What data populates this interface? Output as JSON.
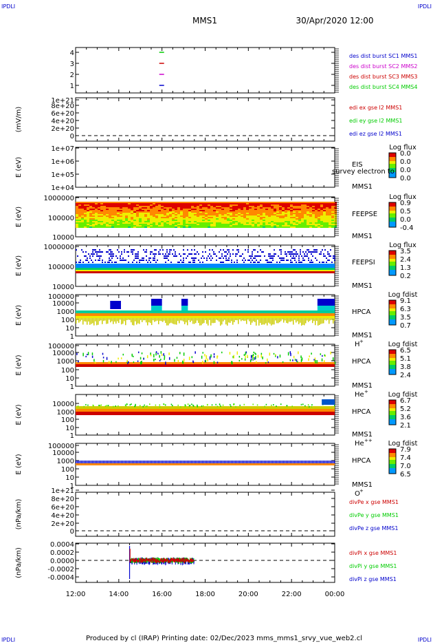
{
  "header": {
    "left_tag": "IPDLI",
    "right_tag": "IPDLI",
    "spacecraft": "MMS1",
    "datetime": "30/Apr/2020 12:00"
  },
  "footer": {
    "left_tag": "IPDLI",
    "right_tag": "IPDLI",
    "credit": "Produced by cl (IRAP)   Printing date: 02/Dec/2023   mms_mms1_srvy_vue_web2.cl"
  },
  "colors": {
    "red": "#cc0000",
    "green": "#00cc00",
    "blue": "#0000cc",
    "magenta": "#cc00cc",
    "tag_blue": "#0000cc"
  },
  "time_axis": {
    "ticks": [
      "12:00",
      "14:00",
      "16:00",
      "18:00",
      "20:00",
      "22:00",
      "00:00"
    ]
  },
  "chart_data": [
    {
      "id": "p1",
      "type": "scatter",
      "yticks": [
        "1",
        "2",
        "3",
        "4"
      ],
      "series": [
        {
          "name": "des dist burst SC1 MMS1",
          "color": "#0000cc",
          "points": [
            [
              15.97,
              1
            ]
          ]
        },
        {
          "name": "des dist burst SC2 MMS2",
          "color": "#cc00cc",
          "points": [
            [
              15.97,
              2
            ]
          ]
        },
        {
          "name": "des dist burst SC3 MMS3",
          "color": "#cc0000",
          "points": [
            [
              15.97,
              3
            ]
          ]
        },
        {
          "name": "des dist burst SC4 MMS4",
          "color": "#00cc00",
          "points": [
            [
              15.97,
              4
            ]
          ]
        }
      ]
    },
    {
      "id": "p2",
      "type": "line",
      "ylabel": "(mV/m)",
      "yticks": [
        "0",
        "2e+20",
        "4e+20",
        "6e+20",
        "8e+20",
        "1e+21"
      ],
      "series": [
        {
          "name": "edi ex gse l2 MMS1",
          "color": "#cc0000"
        },
        {
          "name": "edi ey gse l2 MMS1",
          "color": "#00cc00"
        },
        {
          "name": "edi ez gse l2 MMS1",
          "color": "#0000cc"
        }
      ]
    },
    {
      "id": "p3",
      "type": "heatmap",
      "ylabel": "E (eV)",
      "scale": "log",
      "yticks": [
        "1e+04",
        "1e+05",
        "1e+06",
        "1e+07"
      ],
      "instrument": "EIS",
      "spacecraft": "MMS1",
      "extra": "survey electron to",
      "colorbar": {
        "title": "Log flux",
        "ticks": [
          "0.0",
          "0.0",
          "0.0",
          "0.0"
        ]
      }
    },
    {
      "id": "p4",
      "type": "heatmap",
      "ylabel": "E (eV)",
      "scale": "log",
      "yticks": [
        "10000",
        "100000",
        "1000000"
      ],
      "instrument": "FEEPSE",
      "spacecraft": "MMS1",
      "colorbar": {
        "title": "Log flux",
        "ticks": [
          "0.9",
          "0.5",
          "0.0",
          "-0.4"
        ]
      }
    },
    {
      "id": "p5",
      "type": "heatmap",
      "ylabel": "E (eV)",
      "scale": "log",
      "yticks": [
        "10000",
        "100000",
        "1000000"
      ],
      "instrument": "FEEPSI",
      "spacecraft": "MMS1",
      "colorbar": {
        "title": "Log flux",
        "ticks": [
          "3.5",
          "2.4",
          "1.3",
          "0.2"
        ]
      }
    },
    {
      "id": "p6",
      "type": "heatmap",
      "ylabel": "E (eV)",
      "scale": "log",
      "yticks": [
        "1",
        "10",
        "100",
        "1000",
        "10000",
        "100000"
      ],
      "instrument": "HPCA",
      "spacecraft": "MMS1",
      "species": "H",
      "charge": "+",
      "colorbar": {
        "title": "Log fdist",
        "ticks": [
          "9.1",
          "6.3",
          "3.5",
          "0.7"
        ]
      }
    },
    {
      "id": "p7",
      "type": "heatmap",
      "ylabel": "E (eV)",
      "scale": "log",
      "yticks": [
        "1",
        "10",
        "100",
        "1000",
        "10000",
        "100000"
      ],
      "instrument": "HPCA",
      "spacecraft": "MMS1",
      "species": "He",
      "charge": "+",
      "colorbar": {
        "title": "Log fdist",
        "ticks": [
          "6.5",
          "5.1",
          "3.8",
          "2.4"
        ]
      }
    },
    {
      "id": "p8",
      "type": "heatmap",
      "ylabel": "E (eV)",
      "scale": "log",
      "yticks": [
        "1",
        "10",
        "100",
        "1000",
        "10000"
      ],
      "instrument": "HPCA",
      "spacecraft": "MMS1",
      "species": "He",
      "charge": "++",
      "colorbar": {
        "title": "Log fdist",
        "ticks": [
          "6.7",
          "5.2",
          "3.6",
          "2.1"
        ]
      }
    },
    {
      "id": "p9",
      "type": "heatmap",
      "ylabel": "E (eV)",
      "scale": "log",
      "yticks": [
        "1",
        "10",
        "100",
        "1000",
        "10000",
        "100000"
      ],
      "instrument": "HPCA",
      "spacecraft": "MMS1",
      "species": "O",
      "charge": "+",
      "colorbar": {
        "title": "Log fdist",
        "ticks": [
          "7.9",
          "7.4",
          "7.0",
          "6.5"
        ]
      }
    },
    {
      "id": "p10",
      "type": "line",
      "ylabel": "(nPa/km)",
      "yticks": [
        "0",
        "2e+20",
        "4e+20",
        "6e+20",
        "8e+20",
        "1e+21"
      ],
      "series": [
        {
          "name": "divPe x gse MMS1",
          "color": "#cc0000"
        },
        {
          "name": "divPe y gse MMS1",
          "color": "#00cc00"
        },
        {
          "name": "divPe z gse MMS1",
          "color": "#0000cc"
        }
      ]
    },
    {
      "id": "p11",
      "type": "line",
      "ylabel": "(nPa/km)",
      "yticks": [
        "-0.0004",
        "-0.0002",
        "0.0000",
        "0.0002",
        "0.0004"
      ],
      "ylim": [
        -0.0005,
        0.0004
      ],
      "data_range_hours": [
        14.5,
        17.5
      ],
      "series": [
        {
          "name": "divPi x gse MMS1",
          "color": "#cc0000"
        },
        {
          "name": "divPi y gse MMS1",
          "color": "#00cc00"
        },
        {
          "name": "divPi z gse MMS1",
          "color": "#0000cc"
        }
      ]
    }
  ]
}
